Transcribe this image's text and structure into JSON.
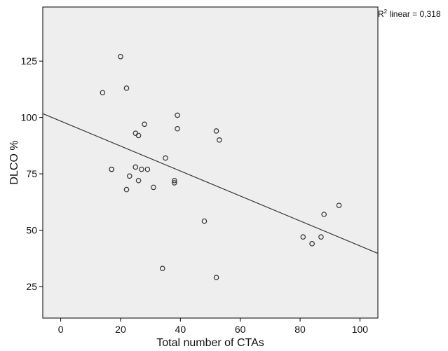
{
  "chart_data": {
    "type": "scatter",
    "title": "",
    "xlabel": "Total number of CTAs",
    "ylabel": "DLCO %",
    "xlim": [
      -6,
      106
    ],
    "ylim": [
      11,
      149
    ],
    "xticks": [
      "0",
      "20",
      "40",
      "60",
      "80",
      "100"
    ],
    "yticks": [
      "25",
      "50",
      "75",
      "100",
      "125"
    ],
    "grid": false,
    "annotation": {
      "prefix": "R",
      "superscript": "2",
      "suffix": " linear = 0,318"
    },
    "fit_line": {
      "x": [
        -6,
        106
      ],
      "y": [
        101.7,
        39.7
      ]
    },
    "x": [
      14,
      17,
      17,
      20,
      22,
      22,
      23,
      25,
      25,
      26,
      26,
      27,
      28,
      29,
      31,
      34,
      35,
      38,
      38,
      39,
      39,
      48,
      52,
      52,
      53,
      81,
      84,
      87,
      88,
      93
    ],
    "y": [
      111,
      77,
      77,
      127,
      113,
      68,
      74,
      93,
      78,
      92,
      72,
      77,
      97,
      77,
      69,
      33,
      82,
      72,
      71,
      101,
      95,
      54,
      94,
      29,
      90,
      47,
      44,
      47,
      57,
      61
    ]
  },
  "colors": {
    "plot_background": "#eeeeee",
    "marker_stroke": "#333333",
    "fit_line": "#333333",
    "frame": "#000000"
  }
}
